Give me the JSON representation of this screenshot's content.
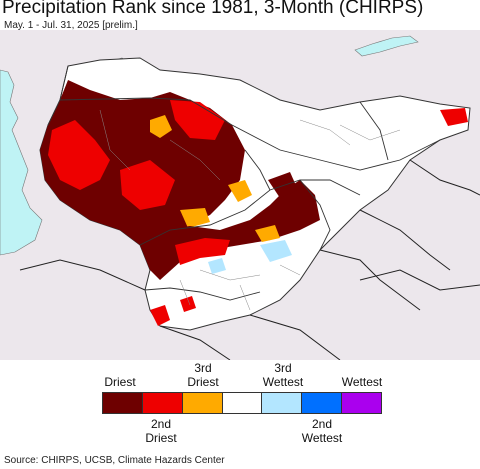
{
  "header": {
    "title": "Precipitation Rank since 1981, 3-Month (CHIRPS)",
    "subtitle": "May. 1 - Jul. 31, 2025 [prelim.]"
  },
  "map": {
    "background_color": "#ece7ec",
    "land_color": "#ffffff",
    "water_color": "#bff3f5",
    "border_color": "#444444"
  },
  "legend": {
    "items": [
      {
        "top_label": "Driest",
        "bottom_label": "",
        "color": "#6e0000"
      },
      {
        "top_label": "",
        "bottom_label": "2nd\nDriest",
        "color": "#ee0000"
      },
      {
        "top_label": "3rd\nDriest",
        "bottom_label": "",
        "color": "#ffaa00"
      },
      {
        "top_label": "",
        "bottom_label": "",
        "color": "#ffffff"
      },
      {
        "top_label": "3rd\nWettest",
        "bottom_label": "",
        "color": "#b3e6ff"
      },
      {
        "top_label": "",
        "bottom_label": "2nd\nWettest",
        "color": "#0070ff"
      },
      {
        "top_label": "Wettest",
        "bottom_label": "",
        "color": "#aa00ee"
      }
    ]
  },
  "footer": {
    "source": "Source: CHIRPS, UCSB, Climate Hazards Center"
  }
}
